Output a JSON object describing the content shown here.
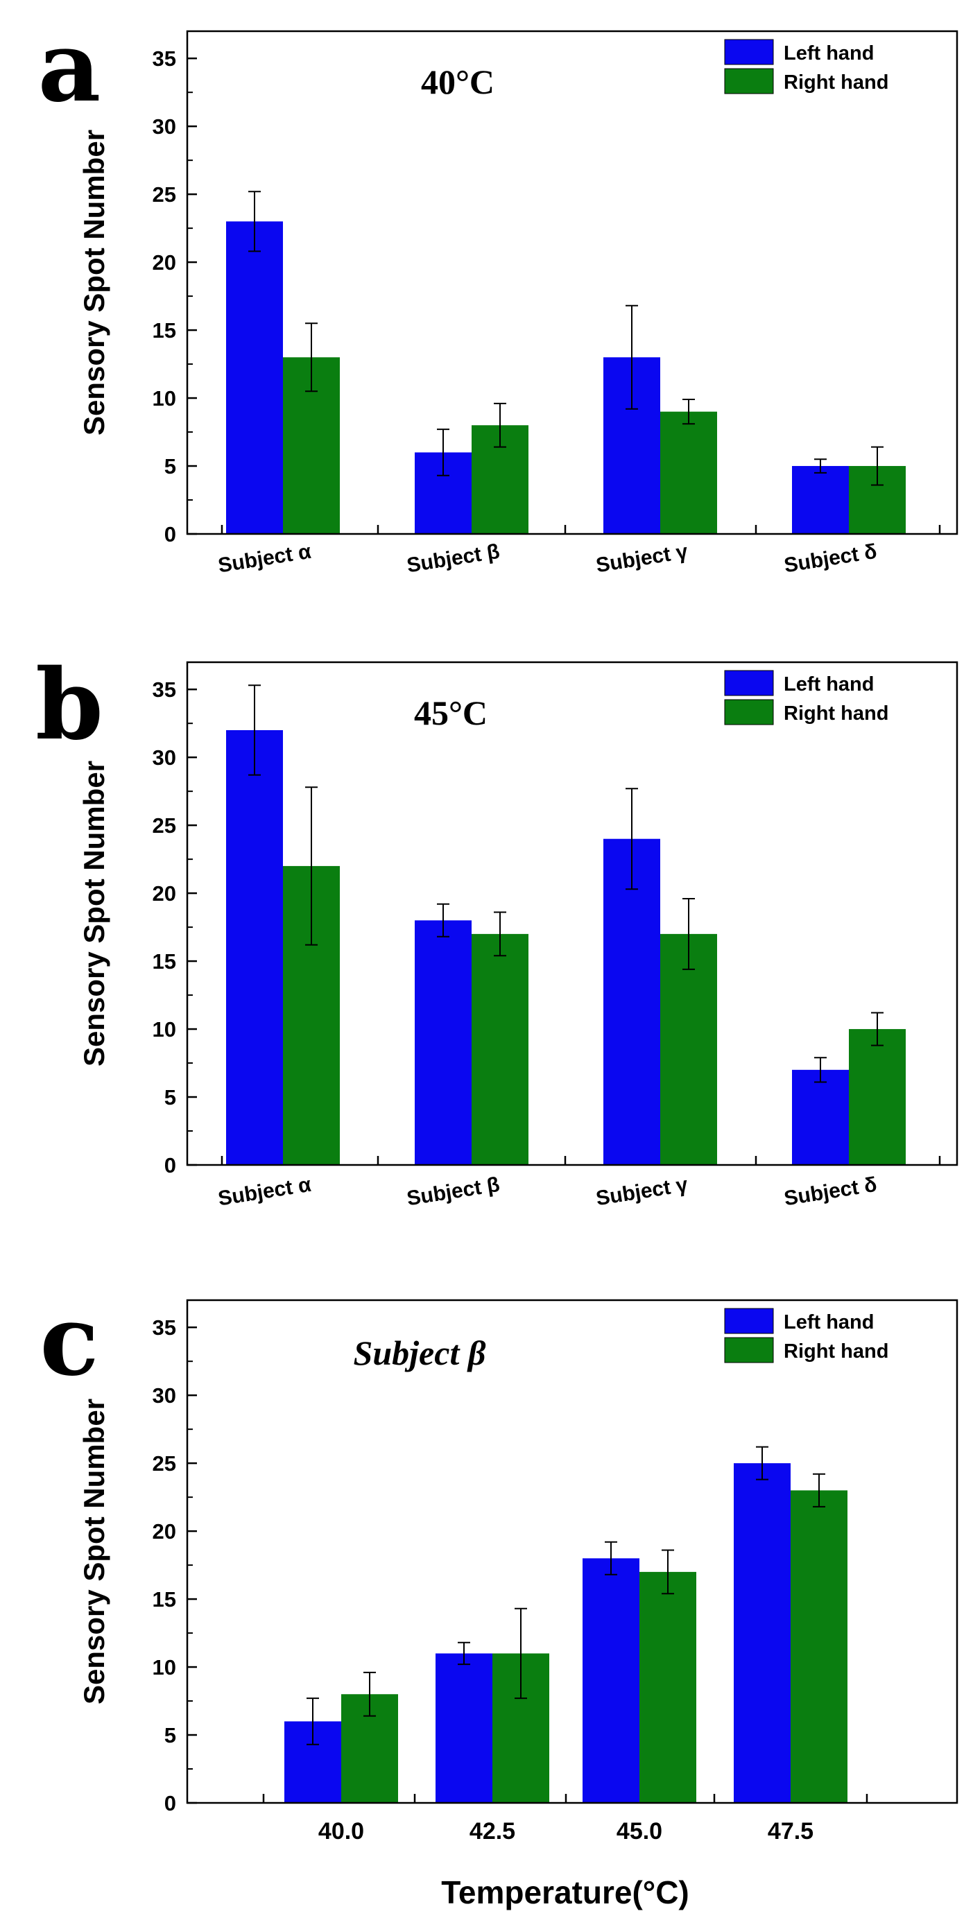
{
  "figure": {
    "legend": [
      "Left hand",
      "Right hand"
    ],
    "colors": {
      "left": "#0a07f0",
      "right": "#0a7e10",
      "axis": "#000000"
    },
    "ylabel": "Sensory Spot Number"
  },
  "chart_data": [
    {
      "type": "bar",
      "panel": "a",
      "title": "40°C",
      "xlabel": "",
      "ylabel": "Sensory Spot Number",
      "ylim": [
        0,
        37
      ],
      "yticks": [
        0,
        5,
        10,
        15,
        20,
        25,
        30,
        35
      ],
      "categories": [
        "Subject α",
        "Subject β",
        "Subject γ",
        "Subject δ"
      ],
      "series": [
        {
          "name": "Left hand",
          "values": [
            23,
            6,
            13,
            5
          ],
          "errors": [
            2.2,
            1.7,
            3.8,
            0.5
          ]
        },
        {
          "name": "Right hand",
          "values": [
            13,
            8,
            9,
            5
          ],
          "errors": [
            2.5,
            1.6,
            0.9,
            1.4
          ]
        }
      ]
    },
    {
      "type": "bar",
      "panel": "b",
      "title": "45°C",
      "xlabel": "",
      "ylabel": "Sensory Spot Number",
      "ylim": [
        0,
        37
      ],
      "yticks": [
        0,
        5,
        10,
        15,
        20,
        25,
        30,
        35
      ],
      "categories": [
        "Subject α",
        "Subject β",
        "Subject γ",
        "Subject δ"
      ],
      "series": [
        {
          "name": "Left hand",
          "values": [
            32,
            18,
            24,
            7
          ],
          "errors": [
            3.3,
            1.2,
            3.7,
            0.9
          ]
        },
        {
          "name": "Right hand",
          "values": [
            22,
            17,
            17,
            10
          ],
          "errors": [
            5.8,
            1.6,
            2.6,
            1.2
          ]
        }
      ]
    },
    {
      "type": "bar",
      "panel": "c",
      "title": "Subject β",
      "xlabel": "Temperature(°C)",
      "ylabel": "Sensory Spot Number",
      "ylim": [
        0,
        37
      ],
      "yticks": [
        0,
        5,
        10,
        15,
        20,
        25,
        30,
        35
      ],
      "categories": [
        "40.0",
        "42.5",
        "45.0",
        "47.5"
      ],
      "series": [
        {
          "name": "Left hand",
          "values": [
            6,
            11,
            18,
            25
          ],
          "errors": [
            1.7,
            0.8,
            1.2,
            1.2
          ]
        },
        {
          "name": "Right hand",
          "values": [
            8,
            11,
            17,
            23
          ],
          "errors": [
            1.6,
            3.3,
            1.6,
            1.2
          ]
        }
      ]
    }
  ]
}
